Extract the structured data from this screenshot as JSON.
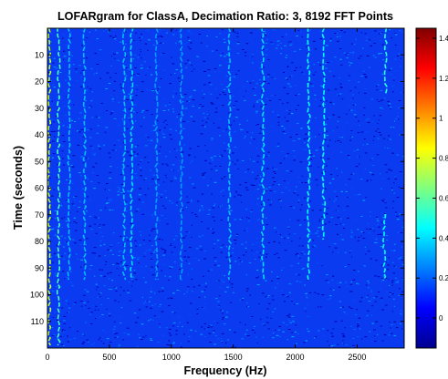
{
  "chart_data": {
    "type": "heatmap",
    "title": "LOFARgram for ClassA, Decimation Ratio: 3, 8192 FFT Points",
    "xlabel": "Frequency (Hz)",
    "ylabel": "Time (seconds)",
    "xlim": [
      0,
      2880
    ],
    "ylim": [
      0,
      120
    ],
    "y_reversed": true,
    "x_ticks": [
      "0",
      "500",
      "1000",
      "1500",
      "2000",
      "2500"
    ],
    "x_tick_values": [
      0,
      500,
      1000,
      1500,
      2000,
      2500
    ],
    "y_ticks": [
      "10",
      "20",
      "30",
      "40",
      "50",
      "60",
      "70",
      "80",
      "90",
      "100",
      "110"
    ],
    "y_tick_values": [
      10,
      20,
      30,
      40,
      50,
      60,
      70,
      80,
      90,
      100,
      110
    ],
    "colorbar": {
      "colormap": "jet",
      "range": [
        -0.15,
        1.45
      ],
      "tick_labels": [
        "1.4",
        "1.2",
        "1",
        "0.8",
        "0.6",
        "0.4",
        "0.2",
        "0"
      ],
      "tick_values": [
        1.4,
        1.2,
        1.0,
        0.8,
        0.6,
        0.4,
        0.2,
        0
      ]
    },
    "background_level": 0.05,
    "tonal_lines": [
      {
        "freq": 15,
        "t0": 0,
        "t1": 120,
        "level": 0.75
      },
      {
        "freq": 90,
        "t0": 0,
        "t1": 120,
        "level": 0.55
      },
      {
        "freq": 175,
        "t0": 0,
        "t1": 95,
        "level": 0.35
      },
      {
        "freq": 300,
        "t0": 0,
        "t1": 95,
        "level": 0.35
      },
      {
        "freq": 620,
        "t0": 0,
        "t1": 95,
        "level": 0.35
      },
      {
        "freq": 680,
        "t0": 0,
        "t1": 95,
        "level": 0.4
      },
      {
        "freq": 880,
        "t0": 0,
        "t1": 95,
        "level": 0.3
      },
      {
        "freq": 1080,
        "t0": 0,
        "t1": 95,
        "level": 0.3
      },
      {
        "freq": 1470,
        "t0": 0,
        "t1": 95,
        "level": 0.35
      },
      {
        "freq": 1740,
        "t0": 0,
        "t1": 95,
        "level": 0.4
      },
      {
        "freq": 2110,
        "t0": 0,
        "t1": 95,
        "level": 0.45
      },
      {
        "freq": 2230,
        "t0": 0,
        "t1": 80,
        "level": 0.45
      },
      {
        "freq": 2730,
        "t0": 0,
        "t1": 25,
        "level": 0.5
      },
      {
        "freq": 2720,
        "t0": 70,
        "t1": 95,
        "level": 0.45
      }
    ]
  }
}
